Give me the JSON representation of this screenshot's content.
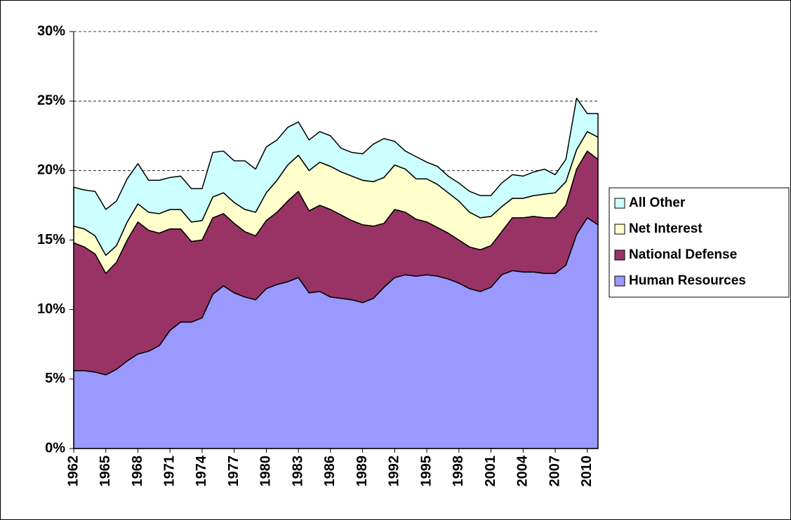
{
  "chart_data": {
    "type": "stacked-area",
    "x": [
      1962,
      1963,
      1964,
      1965,
      1966,
      1967,
      1968,
      1969,
      1970,
      1971,
      1972,
      1973,
      1974,
      1975,
      1976,
      1977,
      1978,
      1979,
      1980,
      1981,
      1982,
      1983,
      1984,
      1985,
      1986,
      1987,
      1988,
      1989,
      1990,
      1991,
      1992,
      1993,
      1994,
      1995,
      1996,
      1997,
      1998,
      1999,
      2000,
      2001,
      2002,
      2003,
      2004,
      2005,
      2006,
      2007,
      2008,
      2009,
      2010,
      2011
    ],
    "xlim": [
      1962,
      2011
    ],
    "xticks": [
      1962,
      1965,
      1968,
      1971,
      1974,
      1977,
      1980,
      1983,
      1986,
      1989,
      1992,
      1995,
      1998,
      2001,
      2004,
      2007,
      2010
    ],
    "ylim": [
      0,
      30
    ],
    "yticks": [
      {
        "value": 0,
        "label": "0%"
      },
      {
        "value": 5,
        "label": "5%"
      },
      {
        "value": 10,
        "label": "10%"
      },
      {
        "value": 15,
        "label": "15%"
      },
      {
        "value": 20,
        "label": "20%"
      },
      {
        "value": 25,
        "label": "25%"
      },
      {
        "value": 30,
        "label": "30%"
      }
    ],
    "grid": true,
    "legend": "right",
    "series": [
      {
        "name": "Human Resources",
        "color": "#9999ff",
        "values": [
          5.6,
          5.6,
          5.5,
          5.3,
          5.7,
          6.3,
          6.8,
          7.0,
          7.4,
          8.5,
          9.1,
          9.1,
          9.4,
          11.1,
          11.7,
          11.2,
          10.9,
          10.7,
          11.5,
          11.8,
          12.0,
          12.3,
          11.2,
          11.3,
          10.9,
          10.8,
          10.7,
          10.5,
          10.8,
          11.6,
          12.3,
          12.5,
          12.4,
          12.5,
          12.4,
          12.2,
          11.9,
          11.5,
          11.3,
          11.6,
          12.5,
          12.8,
          12.7,
          12.7,
          12.6,
          12.6,
          13.2,
          15.4,
          16.6,
          16.1
        ]
      },
      {
        "name": "National Defense",
        "color": "#993366",
        "values": [
          9.2,
          8.9,
          8.5,
          7.3,
          7.7,
          8.7,
          9.5,
          8.7,
          8.1,
          7.3,
          6.7,
          5.8,
          5.6,
          5.5,
          5.2,
          5.0,
          4.7,
          4.6,
          4.9,
          5.2,
          5.8,
          6.2,
          5.9,
          6.2,
          6.3,
          6.0,
          5.7,
          5.6,
          5.2,
          4.6,
          4.9,
          4.5,
          4.1,
          3.8,
          3.5,
          3.3,
          3.1,
          3.0,
          3.0,
          3.0,
          3.1,
          3.8,
          3.9,
          4.0,
          4.0,
          4.0,
          4.3,
          4.7,
          4.8,
          4.7
        ]
      },
      {
        "name": "Net Interest",
        "color": "#ffffcc",
        "values": [
          1.2,
          1.3,
          1.3,
          1.3,
          1.2,
          1.3,
          1.3,
          1.3,
          1.4,
          1.4,
          1.4,
          1.4,
          1.4,
          1.5,
          1.5,
          1.5,
          1.6,
          1.7,
          2.0,
          2.3,
          2.6,
          2.6,
          2.9,
          3.1,
          3.1,
          3.1,
          3.2,
          3.2,
          3.2,
          3.3,
          3.2,
          3.1,
          2.9,
          3.1,
          3.1,
          2.9,
          2.8,
          2.5,
          2.3,
          2.1,
          1.8,
          1.4,
          1.4,
          1.5,
          1.7,
          1.8,
          1.7,
          1.4,
          1.4,
          1.6
        ]
      },
      {
        "name": "All Other",
        "color": "#ccffff",
        "values": [
          2.8,
          2.8,
          3.2,
          3.3,
          3.2,
          3.1,
          2.9,
          2.3,
          2.4,
          2.3,
          2.4,
          2.4,
          2.3,
          3.2,
          3.0,
          3.0,
          3.5,
          3.1,
          3.3,
          2.9,
          2.7,
          2.4,
          2.2,
          2.2,
          2.2,
          1.7,
          1.7,
          1.9,
          2.7,
          2.8,
          1.7,
          1.3,
          1.6,
          1.2,
          1.3,
          1.2,
          1.3,
          1.5,
          1.6,
          1.5,
          1.7,
          1.7,
          1.6,
          1.7,
          1.8,
          1.3,
          1.6,
          3.7,
          1.3,
          1.7
        ]
      }
    ]
  }
}
